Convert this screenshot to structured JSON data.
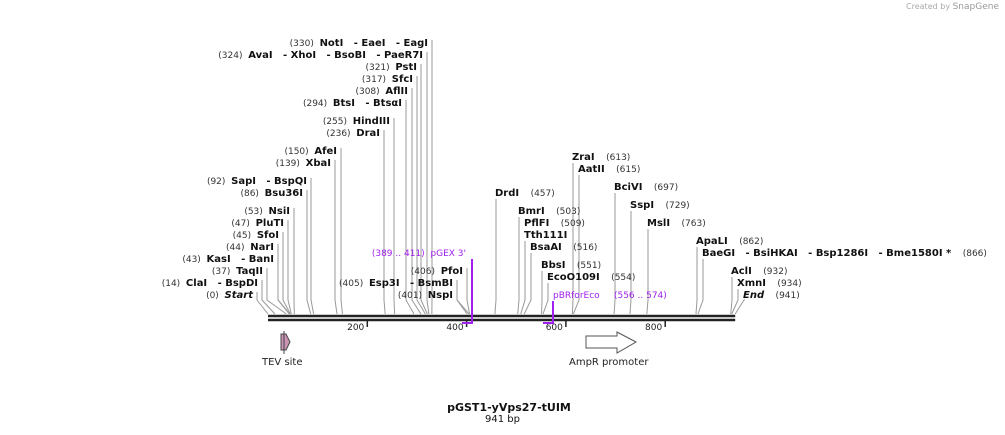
{
  "credit": {
    "prefix": "Created by",
    "brand": "SnapGene"
  },
  "map": {
    "name": "pGST1-yVps27-tUIM",
    "length_label": "941 bp",
    "length": 941
  },
  "ruler": {
    "ticks": [
      200,
      400,
      600,
      800
    ]
  },
  "sites": [
    {
      "label": "NotI   - EaeI   - EagI",
      "pos": 330
    },
    {
      "label": "AvaI   - XhoI   - BsoBI   - PaeR7I",
      "pos": 324
    },
    {
      "label": "PstI",
      "pos": 321
    },
    {
      "label": "SfcI",
      "pos": 317
    },
    {
      "label": "AflII",
      "pos": 308
    },
    {
      "label": "BtsI   - BtsαI",
      "pos": 294
    },
    {
      "label": "HindIII",
      "pos": 255
    },
    {
      "label": "DraI",
      "pos": 236
    },
    {
      "label": "AfeI",
      "pos": 150
    },
    {
      "label": "XbaI",
      "pos": 139
    },
    {
      "label": "SapI   - BspQI",
      "pos": 92
    },
    {
      "label": "Bsu36I",
      "pos": 86
    },
    {
      "label": "NsiI",
      "pos": 53
    },
    {
      "label": "PluTI",
      "pos": 47
    },
    {
      "label": "SfoI",
      "pos": 45
    },
    {
      "label": "NarI",
      "pos": 44
    },
    {
      "label": "KasI   - BanI",
      "pos": 43
    },
    {
      "label": "TaqII",
      "pos": 37
    },
    {
      "label": "ClaI   - BspDI",
      "pos": 14
    },
    {
      "label": "Start",
      "pos": 0,
      "italic": true
    },
    {
      "label": "PfoI",
      "pos": 406
    },
    {
      "label": "Esp3I   - BsmBI",
      "pos": 405
    },
    {
      "label": "NspI",
      "pos": 401
    },
    {
      "label": "DrdI",
      "pos": 457
    },
    {
      "label": "ZraI",
      "pos": 613
    },
    {
      "label": "AatII",
      "pos": 615
    },
    {
      "label": "BciVI",
      "pos": 697
    },
    {
      "label": "SspI",
      "pos": 729
    },
    {
      "label": "MslI",
      "pos": 763
    },
    {
      "label": "BmrI",
      "pos": 503
    },
    {
      "label": "PflFI",
      "pos": 509,
      "extra": "Tth111I"
    },
    {
      "label": "BsaAI",
      "pos": 516
    },
    {
      "label": "BbsI",
      "pos": 551
    },
    {
      "label": "EcoO109I",
      "pos": 554
    },
    {
      "label": "ApaLI",
      "pos": 862
    },
    {
      "label": "BaeGI   - BsiHKAI   - Bsp1286I   - Bme1580I *",
      "pos": 866
    },
    {
      "label": "AclI",
      "pos": 932
    },
    {
      "label": "XmnI",
      "pos": 934
    },
    {
      "label": "End",
      "pos": 941,
      "italic": true
    }
  ],
  "primers": [
    {
      "name": "pGEX 3'",
      "range": "(389 .. 411)",
      "start": 389,
      "end": 411,
      "direction": "reverse"
    },
    {
      "name": "pBRforEco",
      "range": "(556 .. 574)",
      "start": 556,
      "end": 574,
      "direction": "reverse"
    }
  ],
  "features": [
    {
      "name": "TEV site",
      "start": 21,
      "end": 41,
      "color": "#c994b4"
    },
    {
      "name": "AmpR promoter",
      "start": 642,
      "end": 746,
      "color": "#ffffff"
    }
  ],
  "colors": {
    "primer": "#a020f0",
    "line": "#888888",
    "ruler": "#222222"
  }
}
